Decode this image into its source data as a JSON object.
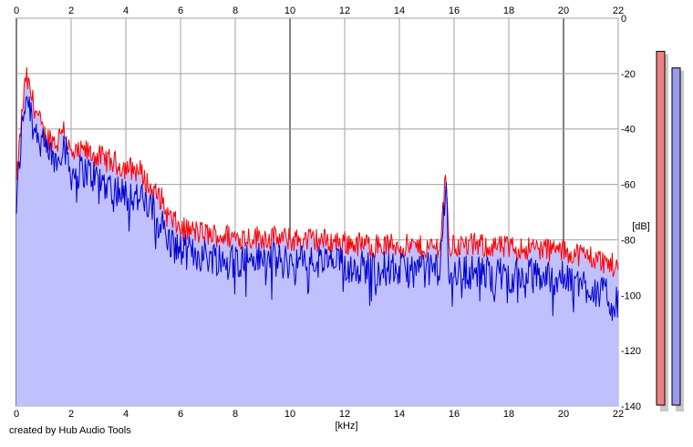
{
  "footer": {
    "credit": "created by Hub Audio Tools"
  },
  "chart_data": {
    "type": "line",
    "xlabel": "[kHz]",
    "ylabel": "[dB]",
    "xlim": [
      0,
      22
    ],
    "ylim": [
      -140,
      0
    ],
    "x_ticks": [
      0,
      2,
      4,
      6,
      8,
      10,
      12,
      14,
      16,
      18,
      20,
      22
    ],
    "y_ticks": [
      0,
      -20,
      -40,
      -60,
      -80,
      -100,
      -120,
      -140
    ],
    "grid": true,
    "colors": {
      "series_1": "#ff0000",
      "series_2": "#0000cc",
      "fill": "#c0c0ff",
      "grid": "#a0a0a0",
      "level_1_fill": "#f08080",
      "level_2_fill": "#9999ee"
    },
    "series": [
      {
        "x": [
          0,
          0.2,
          0.35,
          0.6,
          1.0,
          1.5,
          1.7,
          2.0,
          2.5,
          3.0,
          3.5,
          4.0,
          4.5,
          5.0,
          5.3,
          5.5,
          6.0,
          7.0,
          8.0,
          9.0,
          10.0,
          11.0,
          12.0,
          13.0,
          14.0,
          15.0,
          15.5,
          15.7,
          15.8,
          16.0,
          17.0,
          18.0,
          19.0,
          20.0,
          21.0,
          22.0
        ],
        "y": [
          -60,
          -35,
          -21,
          -30,
          -42,
          -45,
          -38,
          -50,
          -48,
          -50,
          -52,
          -54,
          -55,
          -63,
          -65,
          -71,
          -76,
          -78,
          -79,
          -79,
          -80,
          -80,
          -81,
          -82,
          -82,
          -83,
          -82,
          -53,
          -83,
          -82,
          -82,
          -83,
          -83,
          -84,
          -86,
          -90
        ]
      },
      {
        "x": [
          0,
          0.2,
          0.35,
          0.6,
          1.0,
          1.5,
          1.7,
          2.0,
          2.5,
          3.0,
          3.5,
          4.0,
          4.5,
          5.0,
          5.3,
          5.5,
          6.0,
          7.0,
          8.0,
          9.0,
          10.0,
          11.0,
          12.0,
          13.0,
          14.0,
          15.0,
          15.5,
          15.7,
          15.8,
          16.0,
          17.0,
          18.0,
          19.0,
          20.0,
          21.0,
          22.0
        ],
        "y": [
          -68,
          -40,
          -27,
          -35,
          -47,
          -52,
          -44,
          -56,
          -55,
          -58,
          -61,
          -63,
          -65,
          -70,
          -73,
          -80,
          -84,
          -86,
          -87,
          -87,
          -88,
          -88,
          -89,
          -90,
          -91,
          -91,
          -90,
          -58,
          -91,
          -91,
          -92,
          -93,
          -93,
          -94,
          -97,
          -103
        ]
      }
    ],
    "levels": [
      -12,
      -18
    ]
  }
}
